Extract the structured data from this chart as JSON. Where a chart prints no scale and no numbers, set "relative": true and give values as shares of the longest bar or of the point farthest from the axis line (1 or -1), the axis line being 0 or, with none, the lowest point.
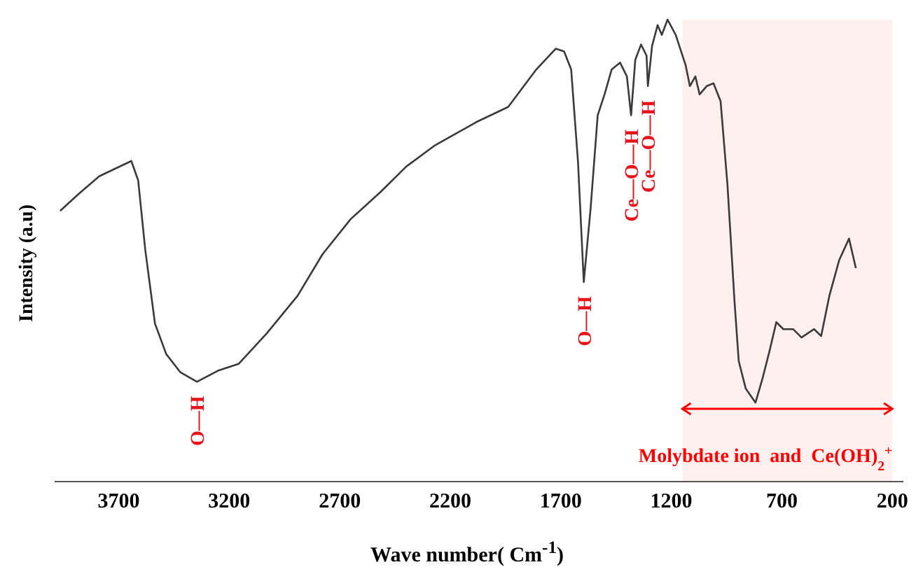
{
  "chart_data": {
    "type": "line",
    "relative": true,
    "xlabel": "Wave number( Cm$^{-1}$)",
    "ylabel": "Intensity (a.u)",
    "xlim": [
      3990,
      150
    ],
    "xticks": [
      3700,
      3200,
      2700,
      2200,
      1700,
      1200,
      700,
      200
    ],
    "marker": "none",
    "line_style": "solid",
    "x": [
      3965,
      3883,
      3788,
      3643,
      3612,
      3580,
      3536,
      3485,
      3422,
      3346,
      3251,
      3157,
      3030,
      2891,
      2778,
      2651,
      2513,
      2399,
      2272,
      2083,
      1938,
      1811,
      1723,
      1685,
      1653,
      1622,
      1596,
      1565,
      1533,
      1502,
      1470,
      1432,
      1401,
      1382,
      1363,
      1337,
      1312,
      1306,
      1287,
      1262,
      1243,
      1217,
      1180,
      1135,
      1116,
      1091,
      1072,
      1040,
      1009,
      977,
      946,
      914,
      895,
      863,
      819,
      788,
      756,
      725,
      693,
      649,
      611,
      554,
      522,
      485,
      440,
      396,
      365
    ],
    "series": [
      {
        "color": "#3a3a3a",
        "values": [
          0.586,
          0.622,
          0.661,
          0.694,
          0.652,
          0.502,
          0.342,
          0.276,
          0.237,
          0.216,
          0.24,
          0.255,
          0.321,
          0.402,
          0.492,
          0.568,
          0.628,
          0.682,
          0.727,
          0.778,
          0.811,
          0.892,
          0.937,
          0.931,
          0.892,
          0.691,
          0.432,
          0.592,
          0.793,
          0.838,
          0.892,
          0.907,
          0.877,
          0.793,
          0.913,
          0.946,
          0.922,
          0.856,
          0.943,
          0.988,
          0.967,
          1,
          0.967,
          0.901,
          0.856,
          0.877,
          0.838,
          0.856,
          0.862,
          0.823,
          0.643,
          0.39,
          0.261,
          0.201,
          0.171,
          0.222,
          0.282,
          0.345,
          0.33,
          0.33,
          0.312,
          0.33,
          0.315,
          0.402,
          0.48,
          0.526,
          0.462
        ]
      }
    ],
    "annotations": [
      {
        "text": "O—H",
        "x": 3346,
        "y": 0.216
      },
      {
        "text": "O—H",
        "x": 1596,
        "y": 0.432
      },
      {
        "text": "Ce—O—H",
        "x": 1382,
        "y": 0.793
      },
      {
        "text": "Ce—O—H",
        "x": 1306,
        "y": 0.856
      }
    ],
    "bands": [
      {
        "axis": "x",
        "from": 1150,
        "to": 200,
        "label": "Molybdate ion  and  Ce(OH)$_{2}$$^{+}$",
        "color": "#ff0000"
      }
    ]
  }
}
